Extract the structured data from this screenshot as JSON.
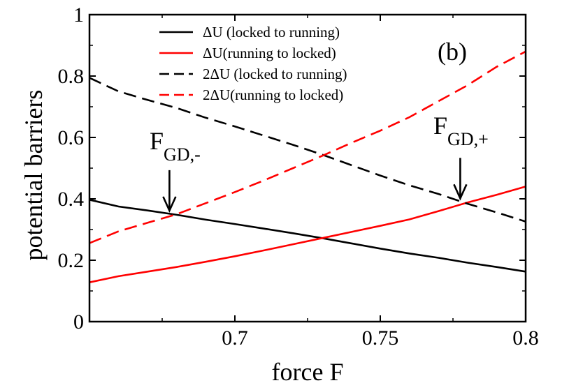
{
  "chart_data": {
    "type": "line",
    "xlabel": "force F",
    "ylabel": "potential barriers",
    "xlim": [
      0.65,
      0.8
    ],
    "ylim": [
      0,
      1
    ],
    "x_ticks": [
      0.7,
      0.75,
      0.8
    ],
    "x_tick_labels": [
      "0.7",
      "0.75",
      "0.8"
    ],
    "y_ticks": [
      0,
      0.2,
      0.4,
      0.6,
      0.8,
      1
    ],
    "y_tick_labels": [
      "0",
      "0.2",
      "0.4",
      "0.6",
      "0.8",
      "1"
    ],
    "panel_label": "(b)",
    "legend_position": "top-center",
    "series": [
      {
        "name": "ΔU (locked to running)",
        "color": "#000000",
        "dash": "solid",
        "x": [
          0.65,
          0.66,
          0.67,
          0.68,
          0.69,
          0.7,
          0.71,
          0.72,
          0.73,
          0.74,
          0.75,
          0.76,
          0.77,
          0.78,
          0.79,
          0.8
        ],
        "y": [
          0.397,
          0.375,
          0.362,
          0.348,
          0.332,
          0.318,
          0.303,
          0.288,
          0.272,
          0.255,
          0.238,
          0.222,
          0.208,
          0.192,
          0.178,
          0.163
        ]
      },
      {
        "name": "ΔU(running to locked)",
        "color": "#ff0000",
        "dash": "solid",
        "x": [
          0.65,
          0.66,
          0.67,
          0.68,
          0.69,
          0.7,
          0.71,
          0.72,
          0.73,
          0.74,
          0.75,
          0.76,
          0.77,
          0.78,
          0.79,
          0.8
        ],
        "y": [
          0.128,
          0.148,
          0.163,
          0.178,
          0.195,
          0.213,
          0.232,
          0.252,
          0.272,
          0.292,
          0.312,
          0.333,
          0.36,
          0.388,
          0.413,
          0.44
        ]
      },
      {
        "name": "2ΔU (locked to running)",
        "color": "#000000",
        "dash": "dashed",
        "x": [
          0.65,
          0.66,
          0.67,
          0.68,
          0.69,
          0.7,
          0.71,
          0.72,
          0.73,
          0.74,
          0.75,
          0.76,
          0.77,
          0.78,
          0.79,
          0.8
        ],
        "y": [
          0.794,
          0.75,
          0.722,
          0.696,
          0.664,
          0.636,
          0.606,
          0.576,
          0.544,
          0.51,
          0.476,
          0.444,
          0.416,
          0.384,
          0.356,
          0.326
        ]
      },
      {
        "name": "2ΔU(running to locked)",
        "color": "#ff0000",
        "dash": "dashed",
        "x": [
          0.65,
          0.66,
          0.67,
          0.68,
          0.69,
          0.7,
          0.71,
          0.72,
          0.73,
          0.74,
          0.75,
          0.76,
          0.77,
          0.78,
          0.79,
          0.8
        ],
        "y": [
          0.256,
          0.294,
          0.322,
          0.35,
          0.386,
          0.422,
          0.46,
          0.5,
          0.54,
          0.582,
          0.622,
          0.666,
          0.718,
          0.77,
          0.83,
          0.88
        ]
      }
    ],
    "annotations": [
      {
        "text_main": "F",
        "text_sub": "GD,-",
        "arrow_x": 0.6775,
        "arrow_tip_y": 0.348
      },
      {
        "text_main": "F",
        "text_sub": "GD,+",
        "arrow_x": 0.7775,
        "arrow_tip_y": 0.388
      }
    ]
  }
}
